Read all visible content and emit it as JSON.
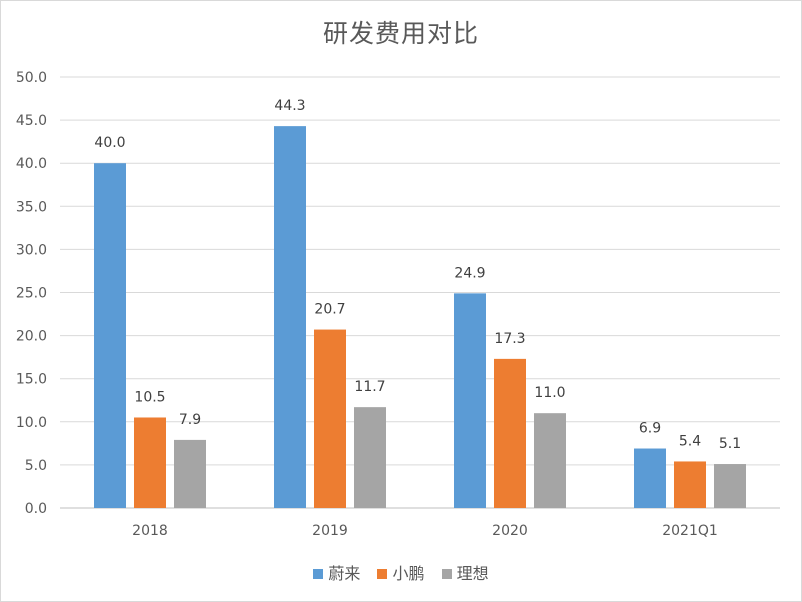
{
  "chart_data": {
    "type": "bar",
    "title": "研发费用对比",
    "categories": [
      "2018",
      "2019",
      "2020",
      "2021Q1"
    ],
    "series": [
      {
        "name": "蔚来",
        "values": [
          40.0,
          44.3,
          24.9,
          6.9
        ],
        "color": "#5b9bd5"
      },
      {
        "name": "小鹏",
        "values": [
          10.5,
          20.7,
          17.3,
          5.4
        ],
        "color": "#ed7d31"
      },
      {
        "name": "理想",
        "values": [
          7.9,
          11.7,
          11.0,
          5.1
        ],
        "color": "#a5a5a5"
      }
    ],
    "ylim": [
      0,
      50
    ],
    "yticks": [
      "0.0",
      "5.0",
      "10.0",
      "15.0",
      "20.0",
      "25.0",
      "30.0",
      "35.0",
      "40.0",
      "45.0",
      "50.0"
    ],
    "grid": true,
    "legend_position": "bottom"
  }
}
